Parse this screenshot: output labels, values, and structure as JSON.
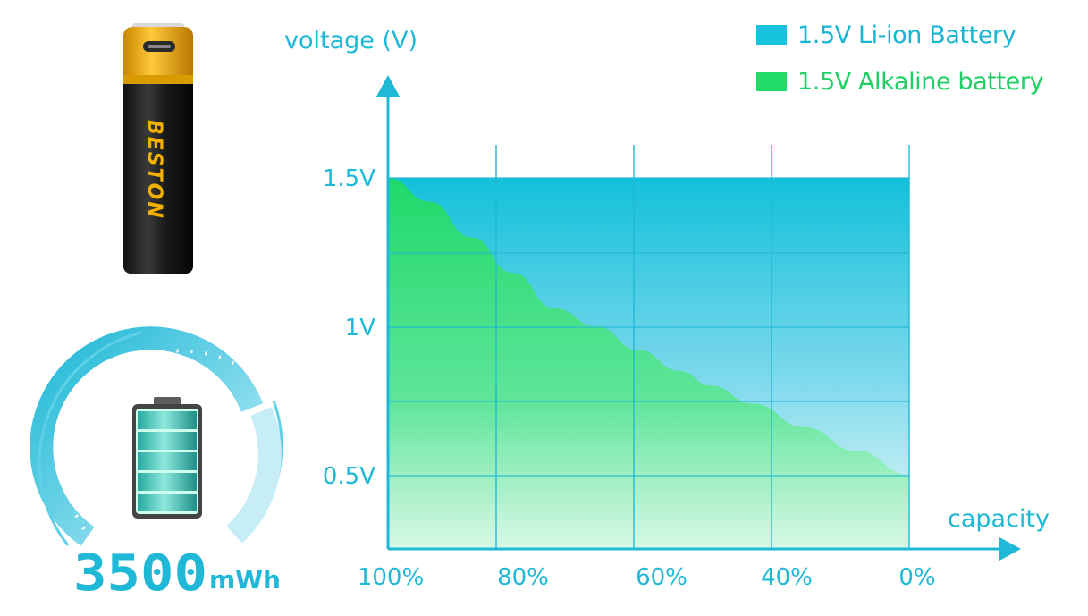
{
  "chart_data": {
    "type": "area",
    "title": "",
    "ylabel": "voltage (V)",
    "xlabel": "capacity",
    "x_ticks": [
      "100%",
      "80%",
      "60%",
      "40%",
      "0%"
    ],
    "y_ticks": [
      "1.5V",
      "1V",
      "0.5V"
    ],
    "ylim": [
      0.25,
      1.5
    ],
    "xlim": [
      100,
      0
    ],
    "grid": true,
    "legend_position": "top-right",
    "series": [
      {
        "name": "1.5V Li-ion Battery",
        "color": "#17c2dd",
        "points": [
          [
            100,
            1.5
          ],
          [
            80,
            1.5
          ],
          [
            60,
            1.5
          ],
          [
            40,
            1.5
          ],
          [
            0,
            1.5
          ]
        ]
      },
      {
        "name": "1.5V Alkaline battery",
        "color": "#22dc6a",
        "points": [
          [
            100,
            1.5
          ],
          [
            92,
            1.42
          ],
          [
            84,
            1.3
          ],
          [
            76,
            1.18
          ],
          [
            68,
            1.06
          ],
          [
            60,
            1.0
          ],
          [
            52,
            0.92
          ],
          [
            44,
            0.85
          ],
          [
            38,
            0.8
          ],
          [
            30,
            0.74
          ],
          [
            20,
            0.66
          ],
          [
            10,
            0.58
          ],
          [
            0,
            0.5
          ]
        ]
      }
    ]
  },
  "product": {
    "brand": "BESTON",
    "capacity_value": "3500",
    "capacity_unit": "mWh",
    "accent_color": "#1fb8d6",
    "battery_gold": "#f2a900"
  },
  "icons": {
    "battery": "aa-battery-icon",
    "gauge": "capacity-gauge-icon",
    "cell": "charged-battery-icon"
  }
}
